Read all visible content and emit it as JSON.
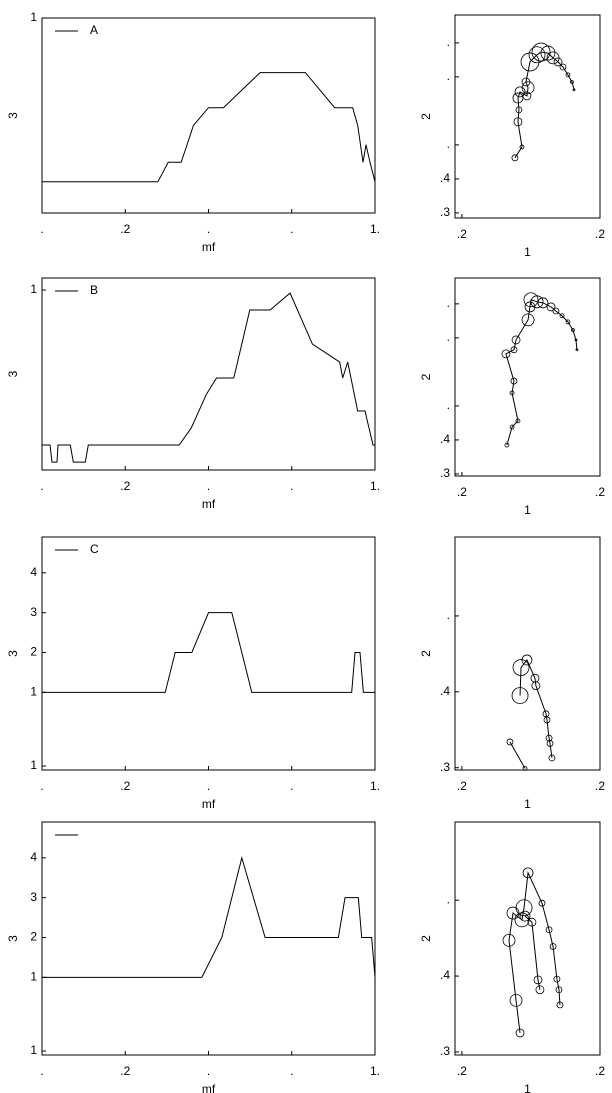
{
  "chart_data": [
    {
      "type": "line",
      "xlabel": "mf",
      "ylabel": "3",
      "legend": "upper left",
      "xlim": [
        0,
        1
      ],
      "ylim": [
        0,
        1
      ],
      "xticks": [
        {
          "value": 0,
          "label": "."
        },
        {
          "value": 0.25,
          "label": ".2"
        },
        {
          "value": 0.5,
          "label": "."
        },
        {
          "value": 0.75,
          "label": "."
        },
        {
          "value": 1,
          "label": "1."
        }
      ],
      "yticks": [
        1
      ],
      "series": [
        {
          "name": "A",
          "color": "#000000",
          "x": [
            0,
            0.348,
            0.379,
            0.418,
            0.455,
            0.5,
            0.545,
            0.6,
            0.655,
            0.791,
            0.879,
            0.933,
            0.948,
            0.964,
            0.973,
            0.985,
            1
          ],
          "values": [
            0.16,
            0.16,
            0.26,
            0.26,
            0.45,
            0.54,
            0.54,
            0.63,
            0.72,
            0.72,
            0.54,
            0.54,
            0.45,
            0.26,
            0.35,
            0.26,
            0.16
          ]
        }
      ]
    },
    {
      "type": "scatter",
      "xlabel": "1",
      "ylabel": "2",
      "connected": true,
      "xlim": [
        0.15,
        1.2
      ],
      "ylim": [
        0.285,
        0.882
      ],
      "xticks": [
        {
          "value": 0.2,
          "label": ".2"
        },
        {
          "value": 1.2,
          "label": ".2"
        }
      ],
      "yticks": [
        {
          "value": 0.3,
          "label": ".3"
        },
        {
          "value": 0.4,
          "label": ".4"
        },
        {
          "value": 0.5,
          "label": "."
        },
        {
          "value": 0.7,
          "label": "."
        },
        {
          "value": 0.8,
          "label": "."
        }
      ],
      "series": [
        {
          "color": "#000000",
          "x": [
            0.584,
            0.635,
            0.606,
            0.613,
            0.606,
            0.621,
            0.671,
            0.679,
            0.664,
            0.693,
            0.744,
            0.773,
            0.823,
            0.86,
            0.896,
            0.932,
            0.968,
            0.997,
            1.012
          ],
          "values": [
            0.462,
            0.494,
            0.568,
            0.603,
            0.638,
            0.656,
            0.644,
            0.668,
            0.685,
            0.744,
            0.765,
            0.773,
            0.77,
            0.756,
            0.744,
            0.729,
            0.706,
            0.685,
            0.662
          ],
          "sizes": [
            3,
            2,
            4,
            3,
            5,
            5,
            4,
            6,
            4,
            9,
            8,
            9,
            7,
            6,
            4,
            3,
            2,
            1.5,
            1
          ]
        }
      ]
    },
    {
      "type": "line",
      "xlabel": "mf",
      "ylabel": "3",
      "legend": "upper left",
      "xlim": [
        0,
        1
      ],
      "ylim": [
        0,
        1.067
      ],
      "xticks": [
        {
          "value": 0,
          "label": "."
        },
        {
          "value": 0.25,
          "label": ".2"
        },
        {
          "value": 0.5,
          "label": "."
        },
        {
          "value": 0.75,
          "label": "."
        },
        {
          "value": 1,
          "label": "1."
        }
      ],
      "yticks": [
        1
      ],
      "series": [
        {
          "name": "B",
          "color": "#000000",
          "x": [
            0,
            0.024,
            0.03,
            0.045,
            0.048,
            0.085,
            0.094,
            0.13,
            0.139,
            0.412,
            0.448,
            0.494,
            0.524,
            0.576,
            0.624,
            0.685,
            0.745,
            0.812,
            0.894,
            0.903,
            0.918,
            0.948,
            0.97,
            0.994,
            1
          ],
          "values": [
            0.139,
            0.139,
            0.044,
            0.044,
            0.139,
            0.139,
            0.044,
            0.044,
            0.139,
            0.139,
            0.233,
            0.422,
            0.511,
            0.511,
            0.889,
            0.889,
            0.983,
            0.7,
            0.6,
            0.511,
            0.6,
            0.328,
            0.328,
            0.139,
            0.139
          ]
        }
      ]
    },
    {
      "type": "scatter",
      "xlabel": "1",
      "ylabel": "2",
      "connected": true,
      "xlim": [
        0.15,
        1.2
      ],
      "ylim": [
        0.294,
        0.876
      ],
      "xticks": [
        {
          "value": 0.2,
          "label": ".2"
        },
        {
          "value": 1.2,
          "label": ".2"
        }
      ],
      "yticks": [
        {
          "value": 0.3,
          "label": ".3"
        },
        {
          "value": 0.4,
          "label": ".4"
        },
        {
          "value": 0.5,
          "label": "."
        },
        {
          "value": 0.7,
          "label": "."
        },
        {
          "value": 0.8,
          "label": "."
        }
      ],
      "series": [
        {
          "color": "#000000",
          "x": [
            0.526,
            0.563,
            0.606,
            0.563,
            0.577,
            0.519,
            0.577,
            0.592,
            0.679,
            0.693,
            0.7,
            0.744,
            0.787,
            0.845,
            0.881,
            0.925,
            0.968,
            1.004,
            1.026,
            1.033
          ],
          "values": [
            0.385,
            0.438,
            0.456,
            0.538,
            0.573,
            0.653,
            0.665,
            0.694,
            0.753,
            0.791,
            0.812,
            0.806,
            0.803,
            0.791,
            0.779,
            0.765,
            0.747,
            0.723,
            0.694,
            0.665
          ],
          "sizes": [
            2,
            2,
            2,
            2,
            3,
            4,
            3,
            4,
            6,
            5,
            7,
            6,
            5,
            4,
            3,
            2,
            2,
            1.5,
            1,
            1
          ]
        }
      ]
    },
    {
      "type": "line",
      "xlabel": "mf",
      "ylabel": "3",
      "legend": "upper left",
      "xlim": [
        0,
        1
      ],
      "ylim": [
        -0.95,
        4.9
      ],
      "xticks": [
        {
          "value": 0,
          "label": "."
        },
        {
          "value": 0.25,
          "label": ".2"
        },
        {
          "value": 0.5,
          "label": "."
        },
        {
          "value": 0.75,
          "label": "."
        },
        {
          "value": 1,
          "label": "1."
        }
      ],
      "yticks": [
        4,
        3,
        2,
        1,
        {
          "value": -0.85,
          "label": "1"
        }
      ],
      "series": [
        {
          "name": "C",
          "color": "#000000",
          "x": [
            0,
            0.37,
            0.4,
            0.45,
            0.5,
            0.57,
            0.63,
            0.93,
            0.94,
            0.955,
            0.965,
            1
          ],
          "values": [
            1,
            1,
            2,
            2,
            3,
            3,
            1,
            1,
            2,
            2,
            1,
            1
          ]
        }
      ]
    },
    {
      "type": "scatter",
      "xlabel": "1",
      "ylabel": "2",
      "connected": true,
      "xlim": [
        0.15,
        1.2
      ],
      "ylim": [
        0.297,
        0.604
      ],
      "xticks": [
        {
          "value": 0.2,
          "label": ".2"
        },
        {
          "value": 1.2,
          "label": ".2"
        }
      ],
      "yticks": [
        {
          "value": 0.3,
          "label": ".3"
        },
        {
          "value": 0.4,
          "label": ".4"
        },
        {
          "value": 0.5,
          "label": "."
        }
      ],
      "series": [
        {
          "color": "#000000",
          "x": [
            0.852,
            0.838,
            0.831,
            0.816,
            0.809,
            0.736,
            0.729,
            0.671,
            0.628,
            0.621,
            null,
            0.548,
            0.657
          ],
          "values": [
            0.313,
            0.332,
            0.339,
            0.363,
            0.371,
            0.408,
            0.418,
            0.442,
            0.432,
            0.395,
            null,
            0.334,
            0.299
          ],
          "sizes": [
            3,
            3,
            3,
            3,
            3,
            4,
            4,
            5,
            8,
            8,
            null,
            3,
            2
          ]
        }
      ]
    },
    {
      "type": "line",
      "xlabel": "mf",
      "ylabel": "3",
      "legend": "upper left",
      "xlim": [
        0,
        1
      ],
      "ylim": [
        -0.95,
        4.9
      ],
      "xticks": [
        {
          "value": 0,
          "label": "."
        },
        {
          "value": 0.25,
          "label": ".2"
        },
        {
          "value": 0.5,
          "label": "."
        },
        {
          "value": 0.75,
          "label": "."
        },
        {
          "value": 1,
          "label": "1."
        }
      ],
      "yticks": [
        4,
        3,
        2,
        1,
        {
          "value": -0.85,
          "label": "1"
        }
      ],
      "series": [
        {
          "color": "#000000",
          "x": [
            0,
            0.48,
            0.54,
            0.6,
            0.67,
            0.89,
            0.91,
            0.95,
            0.96,
            0.99,
            1
          ],
          "values": [
            1,
            1,
            2,
            4,
            2,
            2,
            3,
            3,
            2,
            2,
            1
          ]
        }
      ]
    },
    {
      "type": "scatter",
      "xlabel": "1",
      "ylabel": "2",
      "connected": true,
      "xlim": [
        0.15,
        1.2
      ],
      "ylim": [
        0.296,
        0.603
      ],
      "xticks": [
        {
          "value": 0.2,
          "label": ".2"
        },
        {
          "value": 1.2,
          "label": ".2"
        }
      ],
      "yticks": [
        {
          "value": 0.3,
          "label": ".3"
        },
        {
          "value": 0.4,
          "label": ".4"
        },
        {
          "value": 0.5,
          "label": "."
        }
      ],
      "series": [
        {
          "color": "#000000",
          "x": [
            0.621,
            0.592,
            0.541,
            0.57,
            0.635,
            0.65,
            0.679,
            0.78,
            0.831,
            0.86,
            0.888,
            0.903,
            0.91,
            null,
            0.765,
            0.751,
            0.707,
            0.657
          ],
          "values": [
            0.325,
            0.368,
            0.447,
            0.483,
            0.474,
            0.49,
            0.536,
            0.496,
            0.461,
            0.439,
            0.396,
            0.382,
            0.362,
            null,
            0.382,
            0.395,
            0.471,
            0.479
          ],
          "sizes": [
            4,
            6,
            6,
            6,
            7,
            8,
            5,
            3,
            3,
            3,
            3,
            3,
            3,
            null,
            4,
            4,
            4,
            5
          ]
        }
      ]
    }
  ]
}
